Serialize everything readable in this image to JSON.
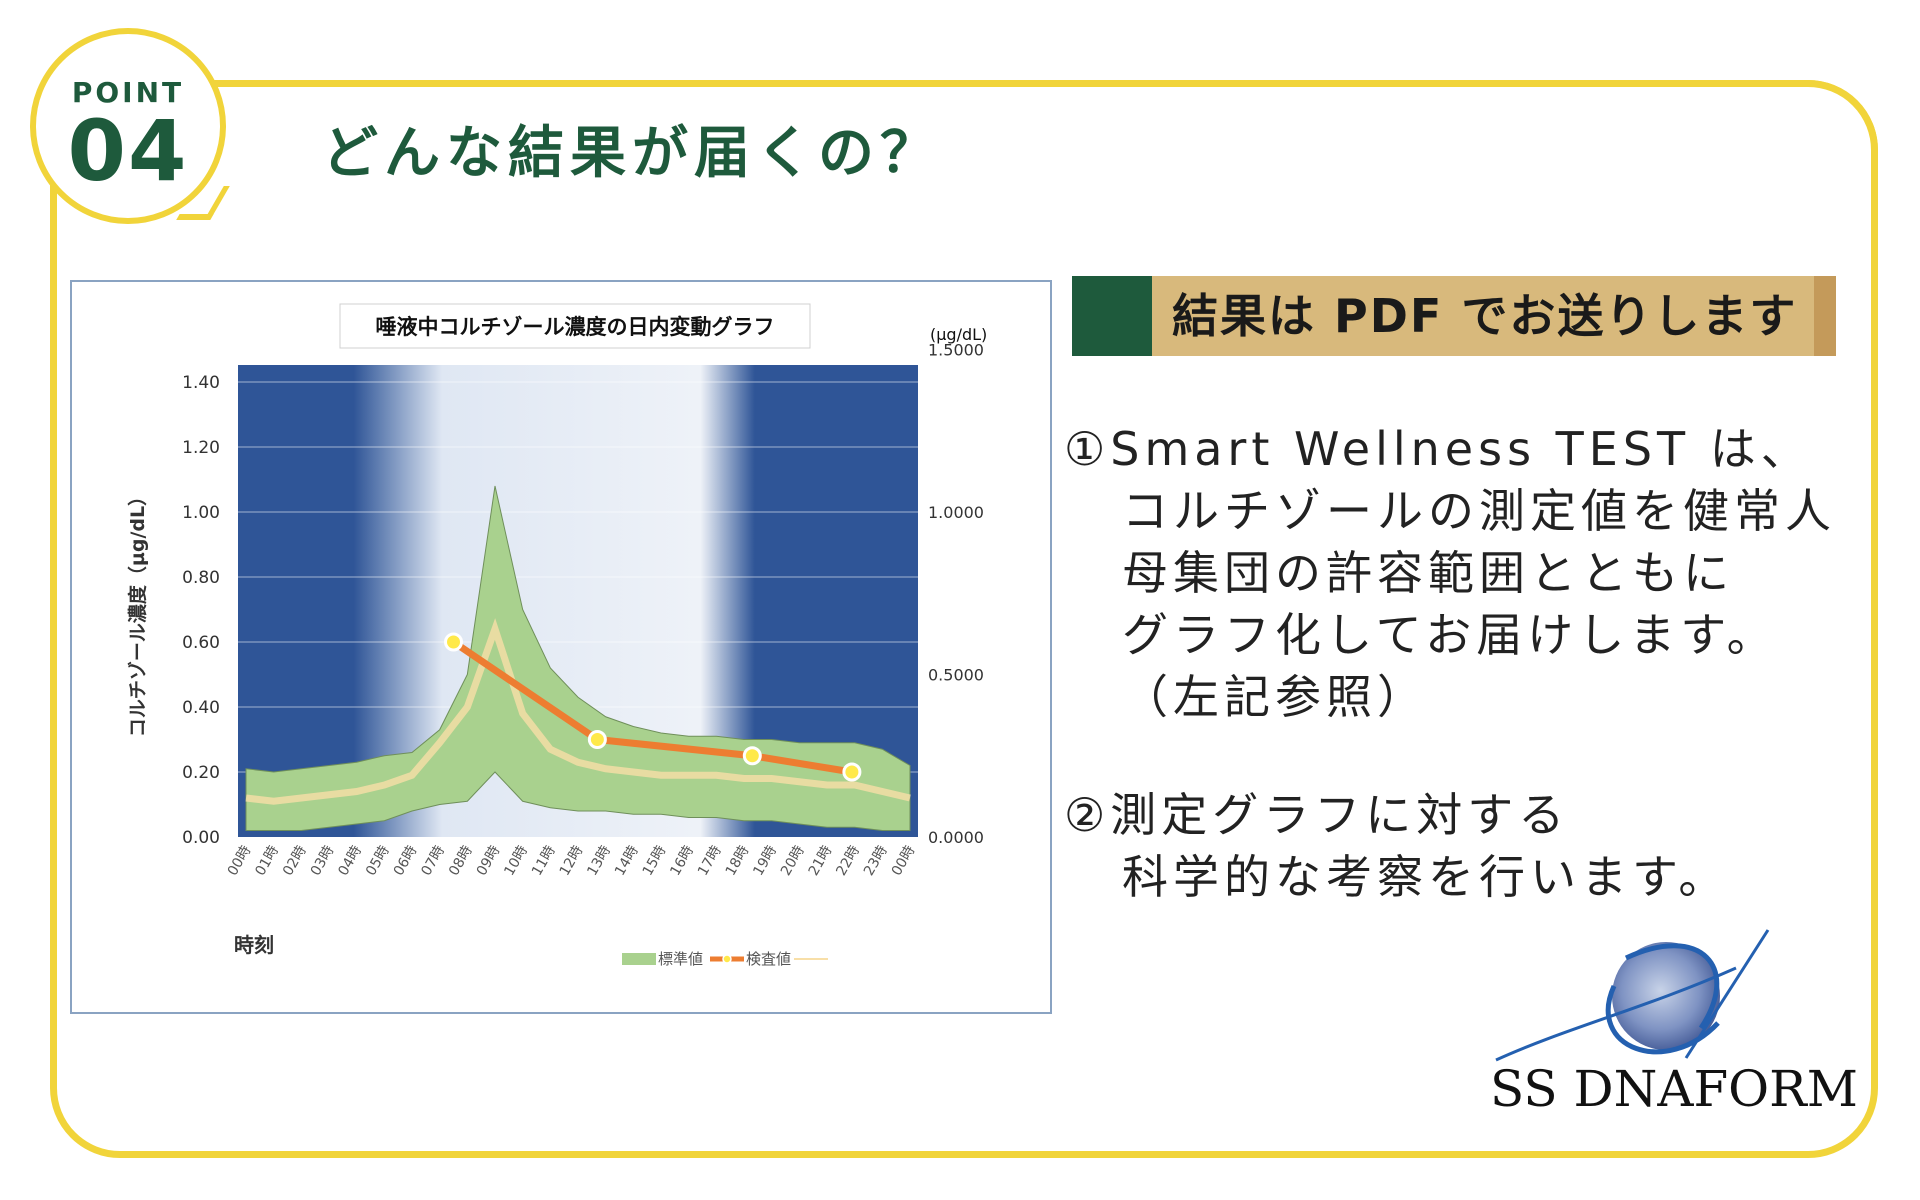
{
  "header": {
    "point_label": "POINT",
    "point_number": "04",
    "title": "どんな結果が届くの？"
  },
  "banner": {
    "text": "結果は PDF でお送りします"
  },
  "description": {
    "item1": [
      "①Smart Wellness TEST は、",
      "コルチゾールの測定値を健常人",
      "母集団の許容範囲とともに",
      "グラフ化してお届けします。",
      "（左記参照）"
    ],
    "item2": [
      "②測定グラフに対する",
      "科学的な考察を行います。"
    ]
  },
  "logo": {
    "text": "SS DNAFORM",
    "icon": "globe-orbit-icon"
  },
  "colors": {
    "yellow": "#f1d43a",
    "green": "#1e5a3c",
    "tan": "#d8b97c",
    "chart_dark": "#2f5597",
    "band_green": "#a9d18e",
    "line_orange": "#ed7d31"
  },
  "chart_data": {
    "type": "area",
    "title": "唾液中コルチゾール濃度の日内変動グラフ",
    "xlabel": "時刻",
    "ylabel": "コルチゾール濃度（µg/dL）",
    "y2label": "(µg/dL)",
    "ylim": [
      0,
      1.4
    ],
    "y2lim": [
      0,
      1.5
    ],
    "yticks": [
      "0.00",
      "0.20",
      "0.40",
      "0.60",
      "0.80",
      "1.00",
      "1.20",
      "1.40"
    ],
    "y2ticks": [
      "0.0000",
      "0.5000",
      "1.0000",
      "1.5000"
    ],
    "categories": [
      "00時",
      "01時",
      "02時",
      "03時",
      "04時",
      "05時",
      "06時",
      "07時",
      "08時",
      "09時",
      "10時",
      "11時",
      "12時",
      "13時",
      "14時",
      "15時",
      "16時",
      "17時",
      "18時",
      "19時",
      "20時",
      "21時",
      "22時",
      "23時",
      "00時"
    ],
    "band_upper": [
      0.21,
      0.2,
      0.21,
      0.22,
      0.23,
      0.25,
      0.26,
      0.33,
      0.5,
      1.08,
      0.7,
      0.52,
      0.43,
      0.37,
      0.34,
      0.32,
      0.31,
      0.31,
      0.3,
      0.3,
      0.29,
      0.29,
      0.29,
      0.27,
      0.22
    ],
    "band_lower": [
      0.02,
      0.02,
      0.02,
      0.03,
      0.04,
      0.05,
      0.08,
      0.1,
      0.11,
      0.2,
      0.11,
      0.09,
      0.08,
      0.08,
      0.07,
      0.07,
      0.06,
      0.06,
      0.05,
      0.05,
      0.04,
      0.03,
      0.03,
      0.02,
      0.02
    ],
    "band_mid": [
      0.12,
      0.11,
      0.12,
      0.13,
      0.14,
      0.16,
      0.19,
      0.29,
      0.4,
      0.64,
      0.38,
      0.27,
      0.23,
      0.21,
      0.2,
      0.19,
      0.19,
      0.19,
      0.18,
      0.18,
      0.17,
      0.16,
      0.16,
      0.14,
      0.12
    ],
    "measured": {
      "x_index": [
        7.5,
        12.7,
        18.3,
        21.9
      ],
      "values": [
        0.6,
        0.3,
        0.25,
        0.2
      ]
    },
    "series": [
      {
        "name": "標準値"
      },
      {
        "name": "検査値"
      }
    ],
    "legend": "bottom-right"
  }
}
